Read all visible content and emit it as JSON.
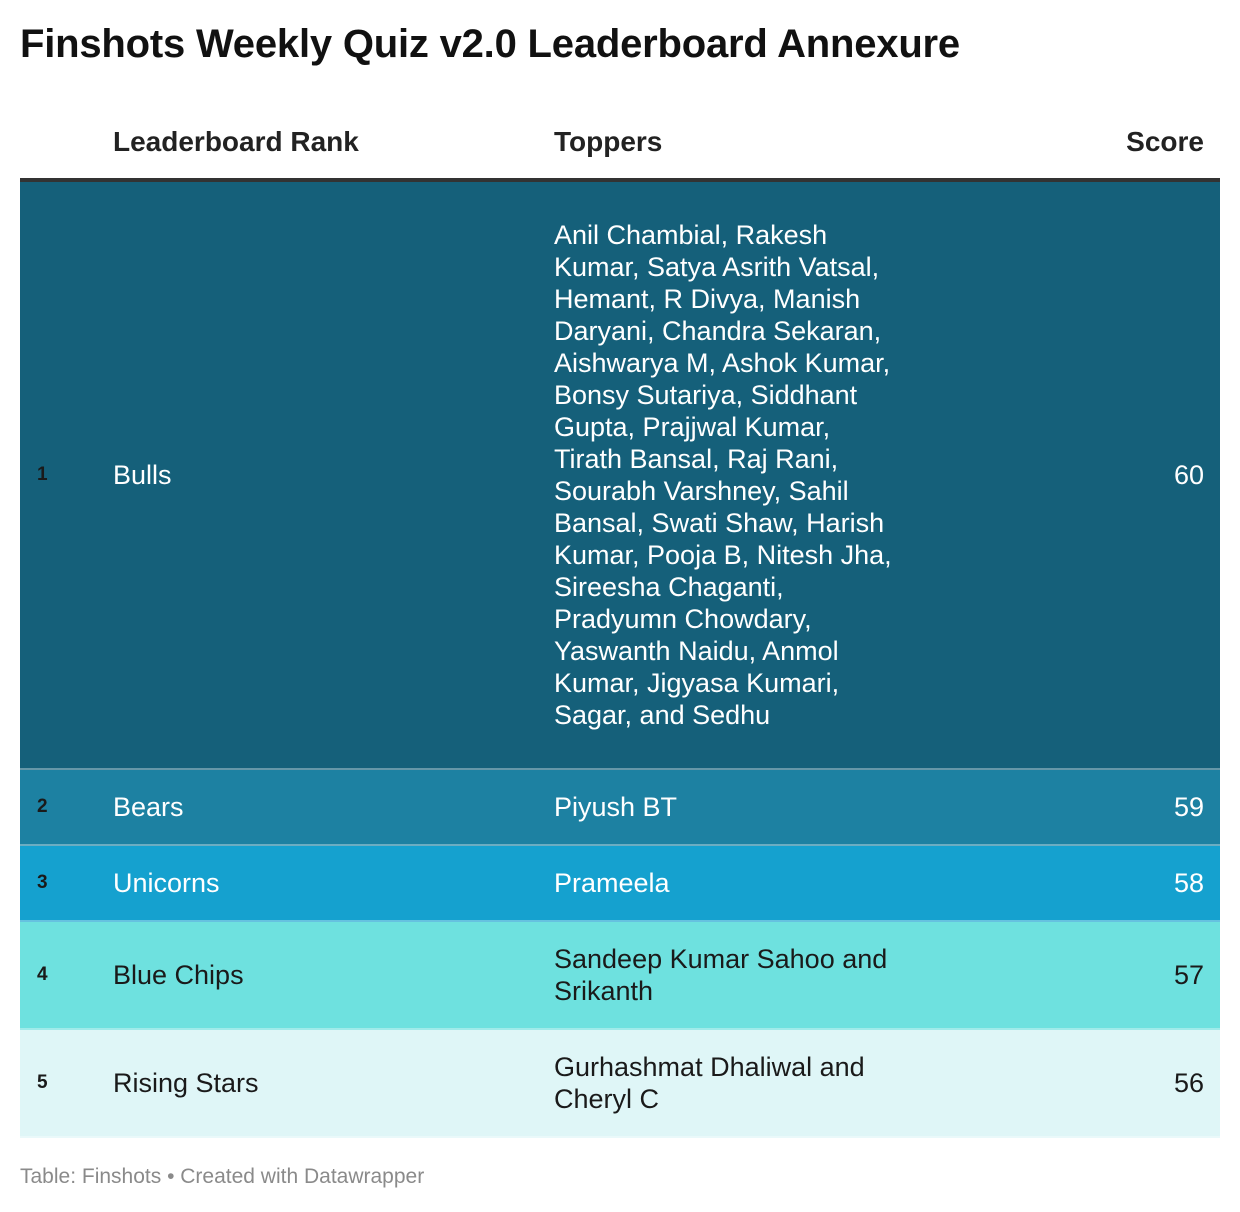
{
  "title": "Finshots Weekly Quiz v2.0 Leaderboard Annexure",
  "chart_data": {
    "type": "table",
    "columns": [
      "",
      "Leaderboard Rank",
      "Toppers",
      "Score"
    ],
    "rows": [
      {
        "rank": "1",
        "team": "Bulls",
        "toppers": "Anil Chambial, Rakesh Kumar, Satya Asrith Vatsal, Hemant, R Divya, Manish Daryani, Chandra Sekaran, Aishwarya M, Ashok Kumar, Bonsy Sutariya, Siddhant Gupta, Prajjwal Kumar, Tirath Bansal, Raj Rani, Sourabh Varshney, Sahil Bansal, Swati Shaw, Harish Kumar, Pooja B, Nitesh Jha, Sireesha Chaganti, Pradyumn Chowdary, Yaswanth Naidu, Anmol Kumar, Jigyasa Kumari, Sagar, and Sedhu",
        "score": 60,
        "bg": "#15607a",
        "text_color": "#ffffff",
        "rank_color": "#1a1a1a"
      },
      {
        "rank": "2",
        "team": "Bears",
        "toppers": "Piyush BT",
        "score": 59,
        "bg": "#1d81a2",
        "text_color": "#ffffff",
        "rank_color": "#1a1a1a"
      },
      {
        "rank": "3",
        "team": "Unicorns",
        "toppers": "Prameela",
        "score": 58,
        "bg": "#15a1cf",
        "text_color": "#ffffff",
        "rank_color": "#1a1a1a"
      },
      {
        "rank": "4",
        "team": "Blue Chips",
        "toppers": "Sandeep Kumar Sahoo and Srikanth",
        "score": 57,
        "bg": "#6ee1df",
        "text_color": "#1a1a1a",
        "rank_color": "#1a1a1a"
      },
      {
        "rank": "5",
        "team": "Rising Stars",
        "toppers": "Gurhashmat Dhaliwal and Cheryl C",
        "score": 56,
        "bg": "#dff6f7",
        "text_color": "#1a1a1a",
        "rank_color": "#1a1a1a"
      }
    ]
  },
  "footer": "Table: Finshots • Created with Datawrapper"
}
